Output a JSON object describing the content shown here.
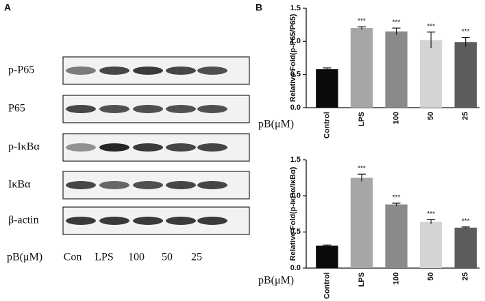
{
  "panel_a": {
    "label": "A",
    "rows": [
      "p-P65",
      "P65",
      "p-IκBα",
      "IκBα",
      "β-actin"
    ],
    "treatment_label": "pB(μM)",
    "lanes": [
      "Con",
      "LPS",
      "100",
      "50",
      "25"
    ]
  },
  "panel_b": {
    "label": "B"
  },
  "chart_data": [
    {
      "type": "bar",
      "ylabel": "Relative Fold(p-P65/P65)",
      "x_prefix": "pB(μM)",
      "categories": [
        "Control",
        "LPS",
        "100",
        "50",
        "25"
      ],
      "values": [
        0.58,
        1.2,
        1.15,
        1.02,
        0.99
      ],
      "errors": [
        0.02,
        0.02,
        0.05,
        0.12,
        0.07
      ],
      "annotations": [
        null,
        "***",
        "***",
        "***",
        "***"
      ],
      "colors": [
        "#0a0a0a",
        "#a6a6a6",
        "#8a8a8a",
        "#d4d4d4",
        "#5c5c5c"
      ],
      "ylim": [
        0,
        1.5
      ],
      "yticks": [
        {
          "value": 0,
          "label": "0.0"
        },
        0.5,
        {
          "value": 1,
          "label": "1.0"
        },
        1.5
      ]
    },
    {
      "type": "bar",
      "ylabel": "Relative Fold(p-IκBα/IκBα)",
      "x_prefix": "pB(μM)",
      "categories": [
        "Control",
        "LPS",
        "100",
        "50",
        "25"
      ],
      "values": [
        0.31,
        1.25,
        0.88,
        0.64,
        0.56
      ],
      "errors": [
        0.01,
        0.05,
        0.02,
        0.03,
        0.01
      ],
      "annotations": [
        null,
        "***",
        "***",
        "***",
        "***"
      ],
      "colors": [
        "#0a0a0a",
        "#a6a6a6",
        "#8a8a8a",
        "#d4d4d4",
        "#5c5c5c"
      ],
      "ylim": [
        0,
        1.5
      ],
      "yticks": [
        {
          "value": 0,
          "label": "0.0"
        },
        0.5,
        {
          "value": 1,
          "label": "1.0"
        },
        1.5
      ]
    }
  ]
}
